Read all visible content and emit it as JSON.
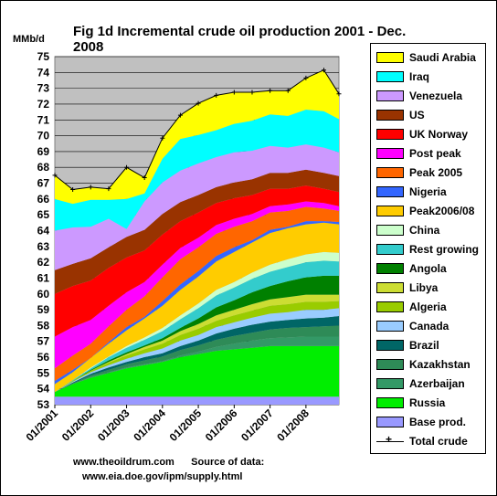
{
  "chart_data": {
    "type": "area",
    "title": "Fig 1d Incremental crude oil production 2001 - Dec. 2008",
    "ylabel": "MMb/d",
    "ylim": [
      53,
      75
    ],
    "yticks": [
      53,
      54,
      55,
      56,
      57,
      58,
      59,
      60,
      61,
      62,
      63,
      64,
      65,
      66,
      67,
      68,
      69,
      70,
      71,
      72,
      73,
      74,
      75
    ],
    "xlim": [
      2001.0,
      2008.92
    ],
    "xticks": [
      {
        "x": 2001.0,
        "label": "01/2001"
      },
      {
        "x": 2002.0,
        "label": "01/2002"
      },
      {
        "x": 2003.0,
        "label": "01/2003"
      },
      {
        "x": 2004.0,
        "label": "01/2004"
      },
      {
        "x": 2005.0,
        "label": "01/2005"
      },
      {
        "x": 2006.0,
        "label": "01/2006"
      },
      {
        "x": 2007.0,
        "label": "01/2007"
      },
      {
        "x": 2008.0,
        "label": "01/2008"
      }
    ],
    "grid": true,
    "legend_position": "right",
    "x": [
      2001.0,
      2001.5,
      2002.0,
      2002.5,
      2003.0,
      2003.5,
      2004.0,
      2004.5,
      2005.0,
      2005.5,
      2006.0,
      2006.5,
      2007.0,
      2007.5,
      2008.0,
      2008.5,
      2008.92
    ],
    "base_value": 53.5,
    "series": [
      {
        "name": "Russia",
        "color": "#00ee00",
        "values": [
          0.3,
          0.8,
          1.2,
          1.5,
          1.8,
          2.0,
          2.2,
          2.5,
          2.7,
          2.9,
          3.0,
          3.1,
          3.2,
          3.2,
          3.2,
          3.2,
          3.2
        ]
      },
      {
        "name": "Azerbaijan",
        "color": "#339966",
        "values": [
          0.0,
          0.0,
          0.05,
          0.05,
          0.05,
          0.05,
          0.05,
          0.1,
          0.15,
          0.25,
          0.35,
          0.45,
          0.5,
          0.55,
          0.6,
          0.6,
          0.6
        ]
      },
      {
        "name": "Kazakhstan",
        "color": "#2e8b57",
        "values": [
          0.0,
          0.05,
          0.1,
          0.15,
          0.2,
          0.25,
          0.3,
          0.35,
          0.4,
          0.45,
          0.5,
          0.5,
          0.55,
          0.6,
          0.6,
          0.65,
          0.7
        ]
      },
      {
        "name": "Brazil",
        "color": "#006666",
        "values": [
          0.0,
          0.05,
          0.1,
          0.15,
          0.15,
          0.2,
          0.2,
          0.25,
          0.3,
          0.4,
          0.45,
          0.5,
          0.5,
          0.5,
          0.55,
          0.55,
          0.6
        ]
      },
      {
        "name": "Canada",
        "color": "#99ccff",
        "values": [
          0.0,
          0.05,
          0.1,
          0.15,
          0.2,
          0.25,
          0.3,
          0.35,
          0.35,
          0.4,
          0.4,
          0.45,
          0.5,
          0.5,
          0.55,
          0.5,
          0.5
        ]
      },
      {
        "name": "Algeria",
        "color": "#99cc00",
        "values": [
          0.0,
          0.05,
          0.1,
          0.15,
          0.2,
          0.25,
          0.3,
          0.35,
          0.4,
          0.4,
          0.45,
          0.45,
          0.5,
          0.5,
          0.5,
          0.5,
          0.45
        ]
      },
      {
        "name": "Libya",
        "color": "#ccdd33",
        "values": [
          0.0,
          0.0,
          0.0,
          0.05,
          0.1,
          0.15,
          0.2,
          0.25,
          0.3,
          0.35,
          0.35,
          0.4,
          0.4,
          0.45,
          0.45,
          0.45,
          0.4
        ]
      },
      {
        "name": "Angola",
        "color": "#008000",
        "values": [
          0.0,
          0.0,
          0.05,
          0.1,
          0.1,
          0.1,
          0.15,
          0.2,
          0.35,
          0.5,
          0.6,
          0.75,
          0.85,
          1.0,
          1.1,
          1.2,
          1.2
        ]
      },
      {
        "name": "Rest growing",
        "color": "#33cccc",
        "values": [
          0.0,
          0.05,
          0.1,
          0.2,
          0.3,
          0.35,
          0.45,
          0.55,
          0.65,
          0.75,
          0.8,
          0.85,
          0.9,
          0.9,
          0.95,
          0.95,
          0.9
        ]
      },
      {
        "name": "China",
        "color": "#ccffcc",
        "values": [
          0.0,
          0.0,
          0.05,
          0.05,
          0.1,
          0.15,
          0.2,
          0.25,
          0.3,
          0.35,
          0.35,
          0.4,
          0.45,
          0.5,
          0.5,
          0.55,
          0.55
        ]
      },
      {
        "name": "Peak2006/08",
        "color": "#ffcc00",
        "values": [
          0.5,
          0.5,
          0.6,
          0.8,
          1.0,
          1.2,
          1.4,
          1.6,
          1.7,
          1.8,
          1.9,
          1.9,
          2.0,
          1.95,
          1.9,
          1.85,
          1.8
        ]
      },
      {
        "name": "Nigeria",
        "color": "#3366ff",
        "values": [
          0.2,
          0.15,
          0.0,
          0.1,
          0.2,
          0.1,
          0.3,
          0.35,
          0.35,
          0.35,
          0.3,
          0.15,
          0.2,
          0.1,
          0.2,
          0.1,
          0.15
        ]
      },
      {
        "name": "Peak 2005",
        "color": "#ff6600",
        "values": [
          0.8,
          0.9,
          0.9,
          1.0,
          1.1,
          1.3,
          1.5,
          1.6,
          1.5,
          1.4,
          1.3,
          1.2,
          1.1,
          1.0,
          0.9,
          0.8,
          0.7
        ]
      },
      {
        "name": "Post peak",
        "color": "#ff00ff",
        "values": [
          2.0,
          1.8,
          1.5,
          1.3,
          1.1,
          0.9,
          0.8,
          0.7,
          0.6,
          0.55,
          0.5,
          0.45,
          0.4,
          0.4,
          0.35,
          0.35,
          0.3
        ]
      },
      {
        "name": "UK Norway",
        "color": "#ff0000",
        "values": [
          2.7,
          2.6,
          2.5,
          2.4,
          2.2,
          2.0,
          1.9,
          1.7,
          1.6,
          1.4,
          1.3,
          1.2,
          1.1,
          1.0,
          1.0,
          0.9,
          0.9
        ]
      },
      {
        "name": "US",
        "color": "#993300",
        "values": [
          1.5,
          1.4,
          1.4,
          1.3,
          1.3,
          1.3,
          1.3,
          1.2,
          1.1,
          1.0,
          1.0,
          1.0,
          1.0,
          1.0,
          1.0,
          1.0,
          1.0
        ]
      },
      {
        "name": "Venezuela",
        "color": "#cc99ff",
        "values": [
          2.5,
          2.3,
          2.0,
          1.8,
          0.5,
          1.8,
          2.0,
          2.0,
          2.0,
          1.9,
          1.9,
          1.8,
          1.7,
          1.6,
          1.6,
          1.6,
          1.5
        ]
      },
      {
        "name": "Iraq",
        "color": "#00ffff",
        "values": [
          2.0,
          1.5,
          1.7,
          1.2,
          1.9,
          0.5,
          1.5,
          2.0,
          1.8,
          1.7,
          1.8,
          1.9,
          2.0,
          2.0,
          2.2,
          2.3,
          2.1
        ]
      },
      {
        "name": "Saudi Arabia",
        "color": "#ffff00",
        "values": [
          1.5,
          0.9,
          0.8,
          0.7,
          2.0,
          1.0,
          1.3,
          1.5,
          2.0,
          2.2,
          2.0,
          1.8,
          1.5,
          1.6,
          2.0,
          2.6,
          1.6
        ]
      }
    ],
    "base_series": {
      "name": "Base prod.",
      "color": "#9999ff"
    },
    "total_series": {
      "name": "Total crude",
      "color": "#000000"
    },
    "legend_order": [
      "Saudi Arabia",
      "Iraq",
      "Venezuela",
      "US",
      "UK Norway",
      "Post peak",
      "Peak 2005",
      "Nigeria",
      "Peak2006/08",
      "China",
      "Rest growing",
      "Angola",
      "Libya",
      "Algeria",
      "Canada",
      "Brazil",
      "Kazakhstan",
      "Azerbaijan",
      "Russia",
      "Base prod.",
      "Total crude"
    ]
  },
  "source": {
    "site": "www.theoildrum.com",
    "source_label": "Source of data:",
    "source_url": "www.eia.doe.gov/ipm/supply.html"
  }
}
